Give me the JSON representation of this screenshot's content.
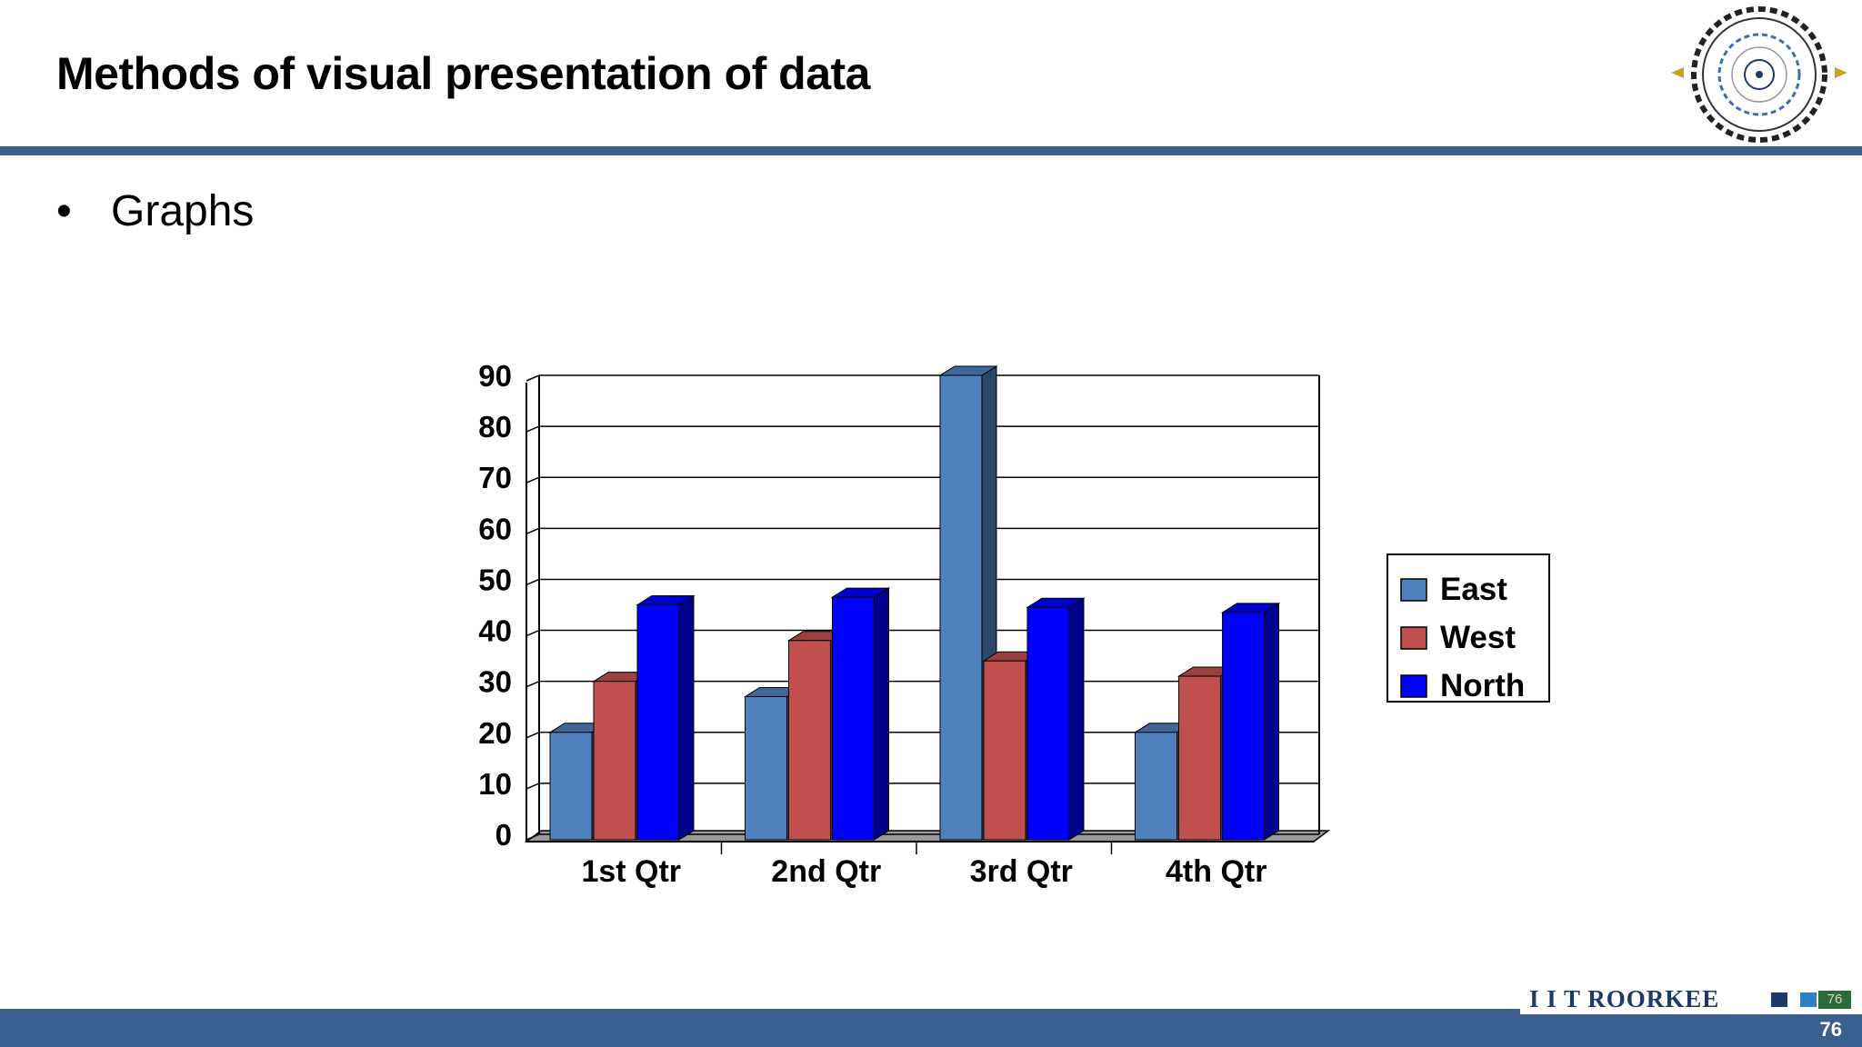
{
  "slide": {
    "title": "Methods of visual presentation of data",
    "bullet": "Graphs",
    "footer_brand": "I I T ROORKEE",
    "footer_small_number": "76",
    "page_number": "76"
  },
  "colors": {
    "accent_bar": "#3a6090",
    "east": "#4f81bd",
    "west": "#c0504d",
    "north": "#0000ff"
  },
  "chart_data": {
    "type": "bar",
    "title": "",
    "xlabel": "",
    "ylabel": "",
    "categories": [
      "1st Qtr",
      "2nd Qtr",
      "3rd Qtr",
      "4th Qtr"
    ],
    "series": [
      {
        "name": "East",
        "values": [
          20,
          27,
          90,
          20
        ]
      },
      {
        "name": "West",
        "values": [
          30,
          38,
          34,
          31
        ]
      },
      {
        "name": "North",
        "values": [
          45,
          46.5,
          44.5,
          43.5
        ]
      }
    ],
    "ylim": [
      0,
      90
    ],
    "yticks": [
      "0",
      "10",
      "20",
      "30",
      "40",
      "50",
      "60",
      "70",
      "80",
      "90"
    ],
    "grid": true,
    "legend": "right"
  }
}
